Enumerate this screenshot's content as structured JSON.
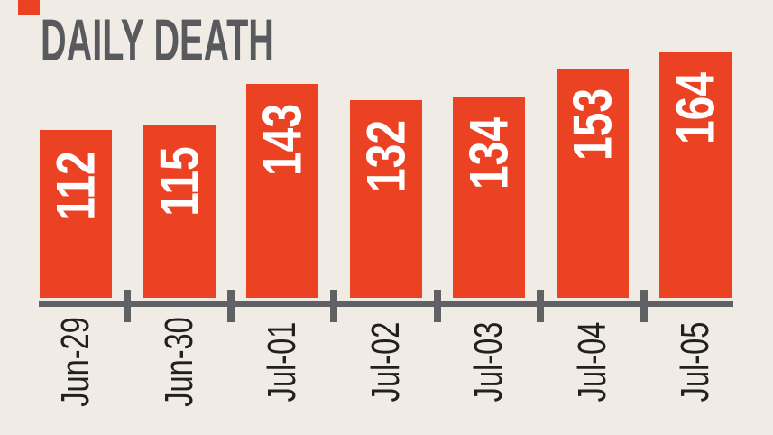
{
  "title": "DAILY DEATH",
  "chart_data": {
    "type": "bar",
    "title": "DAILY DEATH",
    "categories": [
      "Jun-29",
      "Jun-30",
      "Jul-01",
      "Jul-02",
      "Jul-03",
      "Jul-04",
      "Jul-05"
    ],
    "values": [
      112,
      115,
      143,
      132,
      134,
      153,
      164
    ],
    "xlabel": "",
    "ylabel": "",
    "ylim": [
      0,
      164
    ],
    "grid": false,
    "legend": false,
    "value_labels_inside_bars": true,
    "tick_label_rotation_deg": -90,
    "colors": {
      "background": "#f0ece5",
      "bar": "#ec4224",
      "value_label": "#ffffff",
      "axis": "#606164",
      "tick_label": "#221f20",
      "title": "#595a5e"
    }
  }
}
